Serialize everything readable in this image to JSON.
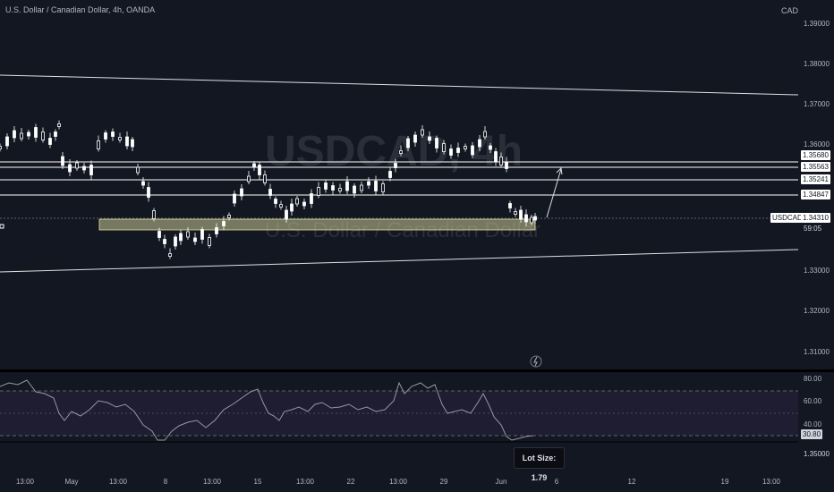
{
  "header": {
    "title": "U.S. Dollar / Canadian Dollar, 4h, OANDA",
    "currency": "CAD"
  },
  "watermark": {
    "symbol": "USDCAD, 4h",
    "name": "U.S. Dollar / Canadian Dollar"
  },
  "price_axis": {
    "ticks": [
      "1.39000",
      "1.38000",
      "1.37000",
      "1.36000",
      "1.35000",
      "1.34000",
      "1.33000",
      "1.32000",
      "1.31000"
    ],
    "levels": [
      {
        "value": "1.35680",
        "highlight": true
      },
      {
        "value": "1.35563",
        "highlight": true
      },
      {
        "value": "1.35241",
        "highlight": true
      },
      {
        "value": "1.34847",
        "highlight": true
      }
    ],
    "symbol_label": "USDCAD",
    "last_price": "1.34310",
    "countdown": "59:05"
  },
  "rsi": {
    "ticks": [
      "80.00",
      "60.00",
      "40.00"
    ],
    "current": "30.80",
    "axis_value": "1.35000"
  },
  "time_axis": {
    "labels": [
      "13:00",
      "May",
      "13:00",
      "8",
      "13:00",
      "15",
      "13:00",
      "22",
      "13:00",
      "29",
      "Jun",
      "6",
      "12",
      "19",
      "13:00"
    ]
  },
  "tooltip": {
    "lot_size": "Lot Size: 1.79"
  },
  "colors": {
    "background": "#131722",
    "candle": "#ffffff",
    "zone": "#c8c896",
    "rsi_line": "#9598a1",
    "rsi_band": "#7e57c2"
  }
}
